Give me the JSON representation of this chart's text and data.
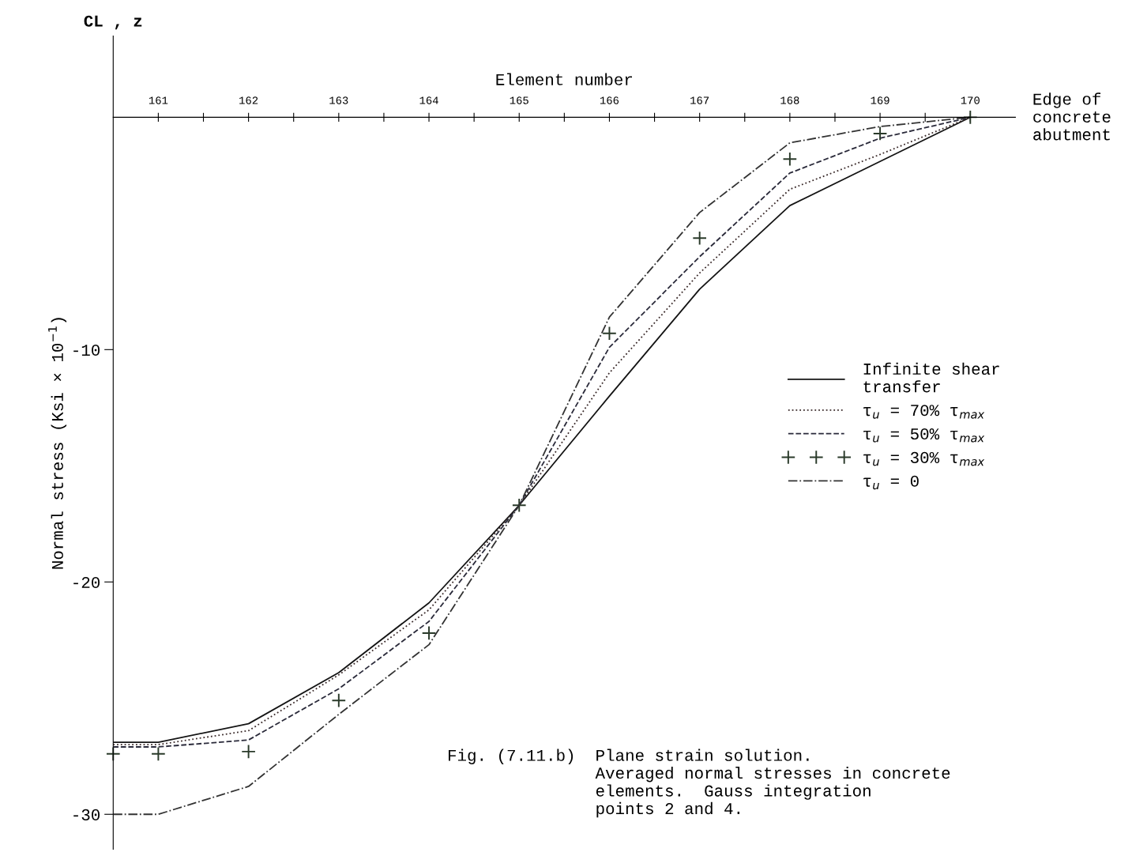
{
  "chart_data": {
    "type": "line",
    "xlabel": "Element number",
    "ylabel": "Normal stress (Ksi × 10$^{−1}$)",
    "x": [
      160.5,
      161,
      162,
      163,
      164,
      165,
      166,
      167,
      168,
      169,
      170
    ],
    "xlim": [
      160.5,
      170.5
    ],
    "ylim": [
      -31.5,
      3.5
    ],
    "xticks": [
      161,
      162,
      163,
      164,
      165,
      166,
      167,
      168,
      169,
      170,
      {
        "value": 161.5,
        "label": null
      },
      {
        "value": 162.5,
        "label": null
      },
      {
        "value": 163.5,
        "label": null
      },
      {
        "value": 164.5,
        "label": null
      },
      {
        "value": 165.5,
        "label": null
      },
      {
        "value": 166.5,
        "label": null
      },
      {
        "value": 167.5,
        "label": null
      },
      {
        "value": 168.5,
        "label": null
      },
      {
        "value": 169.5,
        "label": null
      }
    ],
    "yticks": [
      -10,
      -20,
      -30
    ],
    "grid": false,
    "legend": "right",
    "series": [
      {
        "name": "Infinite shear\ntransfer",
        "color": "#141414",
        "line_style": "solid",
        "marker": "none",
        "values": [
          -26.9,
          -26.9,
          -26.1,
          -23.9,
          -20.9,
          -16.7,
          -12.0,
          -7.4,
          -3.8,
          -1.9,
          0
        ]
      },
      {
        "name": "τ$_{u}$ = 70% τ$_{max}$",
        "color": "#3a2a2a",
        "line_style": "dotted",
        "marker": "none",
        "values": [
          -27.0,
          -27.0,
          -26.4,
          -24.0,
          -21.2,
          -16.7,
          -11.0,
          -6.7,
          -3.1,
          -1.6,
          0
        ]
      },
      {
        "name": "τ$_{u}$ = 50% τ$_{max}$",
        "color": "#2a2a3a",
        "line_style": "dashed",
        "marker": "none",
        "values": [
          -27.1,
          -27.1,
          -26.8,
          -24.6,
          -21.7,
          -16.7,
          -9.9,
          -6.0,
          -2.4,
          -0.9,
          0
        ]
      },
      {
        "name": "τ$_{u}$ = 30% τ$_{max}$",
        "type": "scatter",
        "color": "#2a3a2a",
        "marker": "cross",
        "values": [
          -27.4,
          -27.4,
          -27.3,
          -25.1,
          -22.2,
          -16.7,
          -9.3,
          -5.2,
          -1.8,
          -0.7,
          0
        ]
      },
      {
        "name": "τ$_{u}$ = 0",
        "color": "#333333",
        "line_style": "dashdot",
        "marker": "none",
        "values": [
          -30.0,
          -30.0,
          -28.8,
          -25.7,
          -22.7,
          -16.7,
          -8.6,
          -4.1,
          -1.1,
          -0.4,
          0
        ]
      }
    ],
    "annotations": [
      "Edge of\nconcrete\nabutment",
      "CL , z",
      "Fig. (7.11.b)  Plane strain solution.\n               Averaged normal stresses in concrete\n               elements.  Gauss integration\n               points 2 and 4."
    ]
  }
}
